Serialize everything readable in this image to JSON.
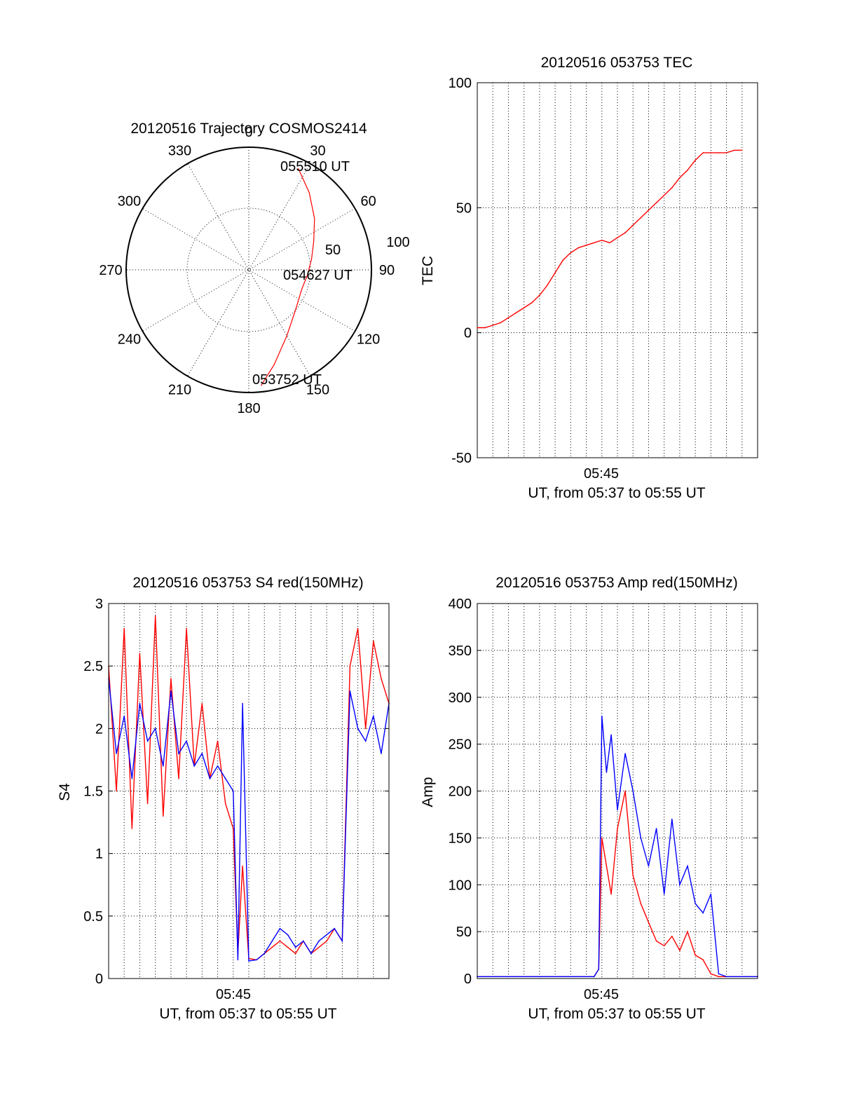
{
  "figure": {
    "polar": {
      "title": "20120516 Trajectory COSMOS2414",
      "azimuth_labels": [
        "0",
        "30",
        "60",
        "90",
        "120",
        "150",
        "180",
        "210",
        "240",
        "270",
        "300",
        "330"
      ],
      "radius_labels": [
        "50",
        "100"
      ],
      "time_labels": {
        "end": "055510 UT",
        "mid": "054627 UT",
        "start": "053752 UT"
      }
    },
    "tec": {
      "title": "20120516 053753 TEC",
      "ylabel": "TEC",
      "xtick": "05:45",
      "xlabel": "UT, from 05:37 to 05:55 UT",
      "yticks": [
        "100",
        "50",
        "0",
        "-50"
      ]
    },
    "s4": {
      "title": "20120516 053753 S4 red(150MHz)",
      "ylabel": "S4",
      "xtick": "05:45",
      "xlabel": "UT, from 05:37 to 05:55 UT",
      "yticks": [
        "3",
        "2.5",
        "2",
        "1.5",
        "1",
        "0.5",
        "0"
      ]
    },
    "amp": {
      "title": "20120516 053753 Amp red(150MHz)",
      "ylabel": "Amp",
      "xtick": "05:45",
      "xlabel": "UT, from 05:37 to 05:55 UT",
      "yticks": [
        "400",
        "350",
        "300",
        "250",
        "200",
        "150",
        "100",
        "50",
        "0"
      ]
    }
  },
  "colors": {
    "red": "#ff0000",
    "blue": "#0000ff",
    "axis": "#000000"
  },
  "chart_data": [
    {
      "type": "polar",
      "title": "20120516 Trajectory COSMOS2414",
      "angle_ticks_deg": [
        0,
        30,
        60,
        90,
        120,
        150,
        180,
        210,
        240,
        270,
        300,
        330
      ],
      "radial_ticks": [
        50,
        100
      ],
      "rlim": [
        0,
        100
      ],
      "series": [
        {
          "color": "red",
          "trajectory_az_deg_zenith_dist": [
            [
              174,
              95
            ],
            [
              165,
              80
            ],
            [
              150,
              62
            ],
            [
              130,
              50
            ],
            [
              110,
              46
            ],
            [
              95,
              48
            ],
            [
              80,
              52
            ],
            [
              66,
              58
            ],
            [
              52,
              68
            ],
            [
              38,
              80
            ],
            [
              26,
              92
            ]
          ]
        }
      ],
      "time_labels": [
        "055510 UT",
        "054627 UT",
        "053752 UT"
      ]
    },
    {
      "type": "line",
      "title": "20120516 053753 TEC",
      "xlabel": "UT, from 05:37 to 05:55 UT",
      "ylabel": "TEC",
      "xlim_min": [
        0,
        18
      ],
      "ylim": [
        -50,
        100
      ],
      "x_ticks": [
        "05:45"
      ],
      "series": [
        {
          "color": "red",
          "x_min_after_0537": [
            0.0,
            0.5,
            1.0,
            1.5,
            2.0,
            2.5,
            3.0,
            3.5,
            4.0,
            4.5,
            5.0,
            5.5,
            6.0,
            6.5,
            7.0,
            7.5,
            8.0,
            8.5,
            9.0,
            9.5,
            10.0,
            10.5,
            11.0,
            11.5,
            12.0,
            12.5,
            13.0,
            13.5,
            14.0,
            14.5,
            15.0,
            15.5,
            16.0,
            16.5,
            17.0
          ],
          "y": [
            2,
            2,
            3,
            4,
            6,
            8,
            10,
            12,
            15,
            19,
            24,
            29,
            32,
            34,
            35,
            36,
            37,
            36,
            38,
            40,
            43,
            46,
            49,
            52,
            55,
            58,
            62,
            65,
            69,
            72,
            72,
            72,
            72,
            73,
            73
          ]
        }
      ]
    },
    {
      "type": "line",
      "title": "20120516 053753 S4 red(150MHz)",
      "xlabel": "UT, from 05:37 to 05:55 UT",
      "ylabel": "S4",
      "xlim_min": [
        0,
        18
      ],
      "ylim": [
        0,
        3
      ],
      "x_ticks": [
        "05:45"
      ],
      "series": [
        {
          "color": "red",
          "x_min_after_0537": [
            0.0,
            0.5,
            1.0,
            1.5,
            2.0,
            2.5,
            3.0,
            3.5,
            4.0,
            4.5,
            5.0,
            5.5,
            6.0,
            6.5,
            7.0,
            7.5,
            8.0,
            8.3,
            8.6,
            9.0,
            9.5,
            10.0,
            10.5,
            11.0,
            11.5,
            12.0,
            12.5,
            13.0,
            13.5,
            14.0,
            14.5,
            15.0,
            15.5,
            16.0,
            16.5,
            17.0,
            17.5,
            18.0
          ],
          "y": [
            2.5,
            1.5,
            2.8,
            1.2,
            2.6,
            1.4,
            2.9,
            1.3,
            2.4,
            1.6,
            2.8,
            1.7,
            2.2,
            1.6,
            1.9,
            1.4,
            1.2,
            0.2,
            0.9,
            0.16,
            0.15,
            0.2,
            0.25,
            0.3,
            0.25,
            0.2,
            0.3,
            0.2,
            0.25,
            0.3,
            0.4,
            0.3,
            2.5,
            2.8,
            2.0,
            2.7,
            2.4,
            2.2
          ]
        },
        {
          "color": "blue",
          "x_min_after_0537": [
            0.0,
            0.5,
            1.0,
            1.5,
            2.0,
            2.5,
            3.0,
            3.5,
            4.0,
            4.5,
            5.0,
            5.5,
            6.0,
            6.5,
            7.0,
            7.5,
            8.0,
            8.3,
            8.6,
            9.0,
            9.5,
            10.0,
            10.5,
            11.0,
            11.5,
            12.0,
            12.5,
            13.0,
            13.5,
            14.0,
            14.5,
            15.0,
            15.5,
            16.0,
            16.5,
            17.0,
            17.5,
            18.0
          ],
          "y": [
            2.4,
            1.8,
            2.1,
            1.6,
            2.2,
            1.9,
            2.0,
            1.7,
            2.3,
            1.8,
            1.9,
            1.7,
            1.8,
            1.6,
            1.7,
            1.6,
            1.5,
            0.15,
            2.2,
            0.14,
            0.15,
            0.2,
            0.3,
            0.4,
            0.35,
            0.25,
            0.3,
            0.2,
            0.3,
            0.35,
            0.4,
            0.3,
            2.3,
            2.0,
            1.9,
            2.1,
            1.8,
            2.2
          ]
        }
      ]
    },
    {
      "type": "line",
      "title": "20120516 053753 Amp red(150MHz)",
      "xlabel": "UT, from 05:37 to 05:55 UT",
      "ylabel": "Amp",
      "xlim_min": [
        0,
        18
      ],
      "ylim": [
        0,
        400
      ],
      "x_ticks": [
        "05:45"
      ],
      "series": [
        {
          "color": "red",
          "x_min_after_0537": [
            0.0,
            2.0,
            4.0,
            6.0,
            7.5,
            7.8,
            8.0,
            8.3,
            8.6,
            9.0,
            9.5,
            10.0,
            10.5,
            11.0,
            11.5,
            12.0,
            12.5,
            13.0,
            13.5,
            14.0,
            14.5,
            15.0,
            15.5,
            16.0,
            18.0
          ],
          "y": [
            2,
            2,
            2,
            2,
            2,
            10,
            150,
            120,
            90,
            160,
            200,
            110,
            80,
            60,
            40,
            35,
            45,
            30,
            50,
            25,
            20,
            5,
            2,
            2,
            2
          ]
        },
        {
          "color": "blue",
          "x_min_after_0537": [
            0.0,
            2.0,
            4.0,
            6.0,
            7.5,
            7.8,
            8.0,
            8.3,
            8.6,
            9.0,
            9.5,
            10.0,
            10.5,
            11.0,
            11.5,
            12.0,
            12.5,
            13.0,
            13.5,
            14.0,
            14.5,
            15.0,
            15.5,
            16.0,
            18.0
          ],
          "y": [
            2,
            2,
            2,
            2,
            2,
            10,
            280,
            220,
            260,
            180,
            240,
            200,
            150,
            120,
            160,
            90,
            170,
            100,
            120,
            80,
            70,
            90,
            5,
            2,
            2
          ]
        }
      ]
    }
  ]
}
